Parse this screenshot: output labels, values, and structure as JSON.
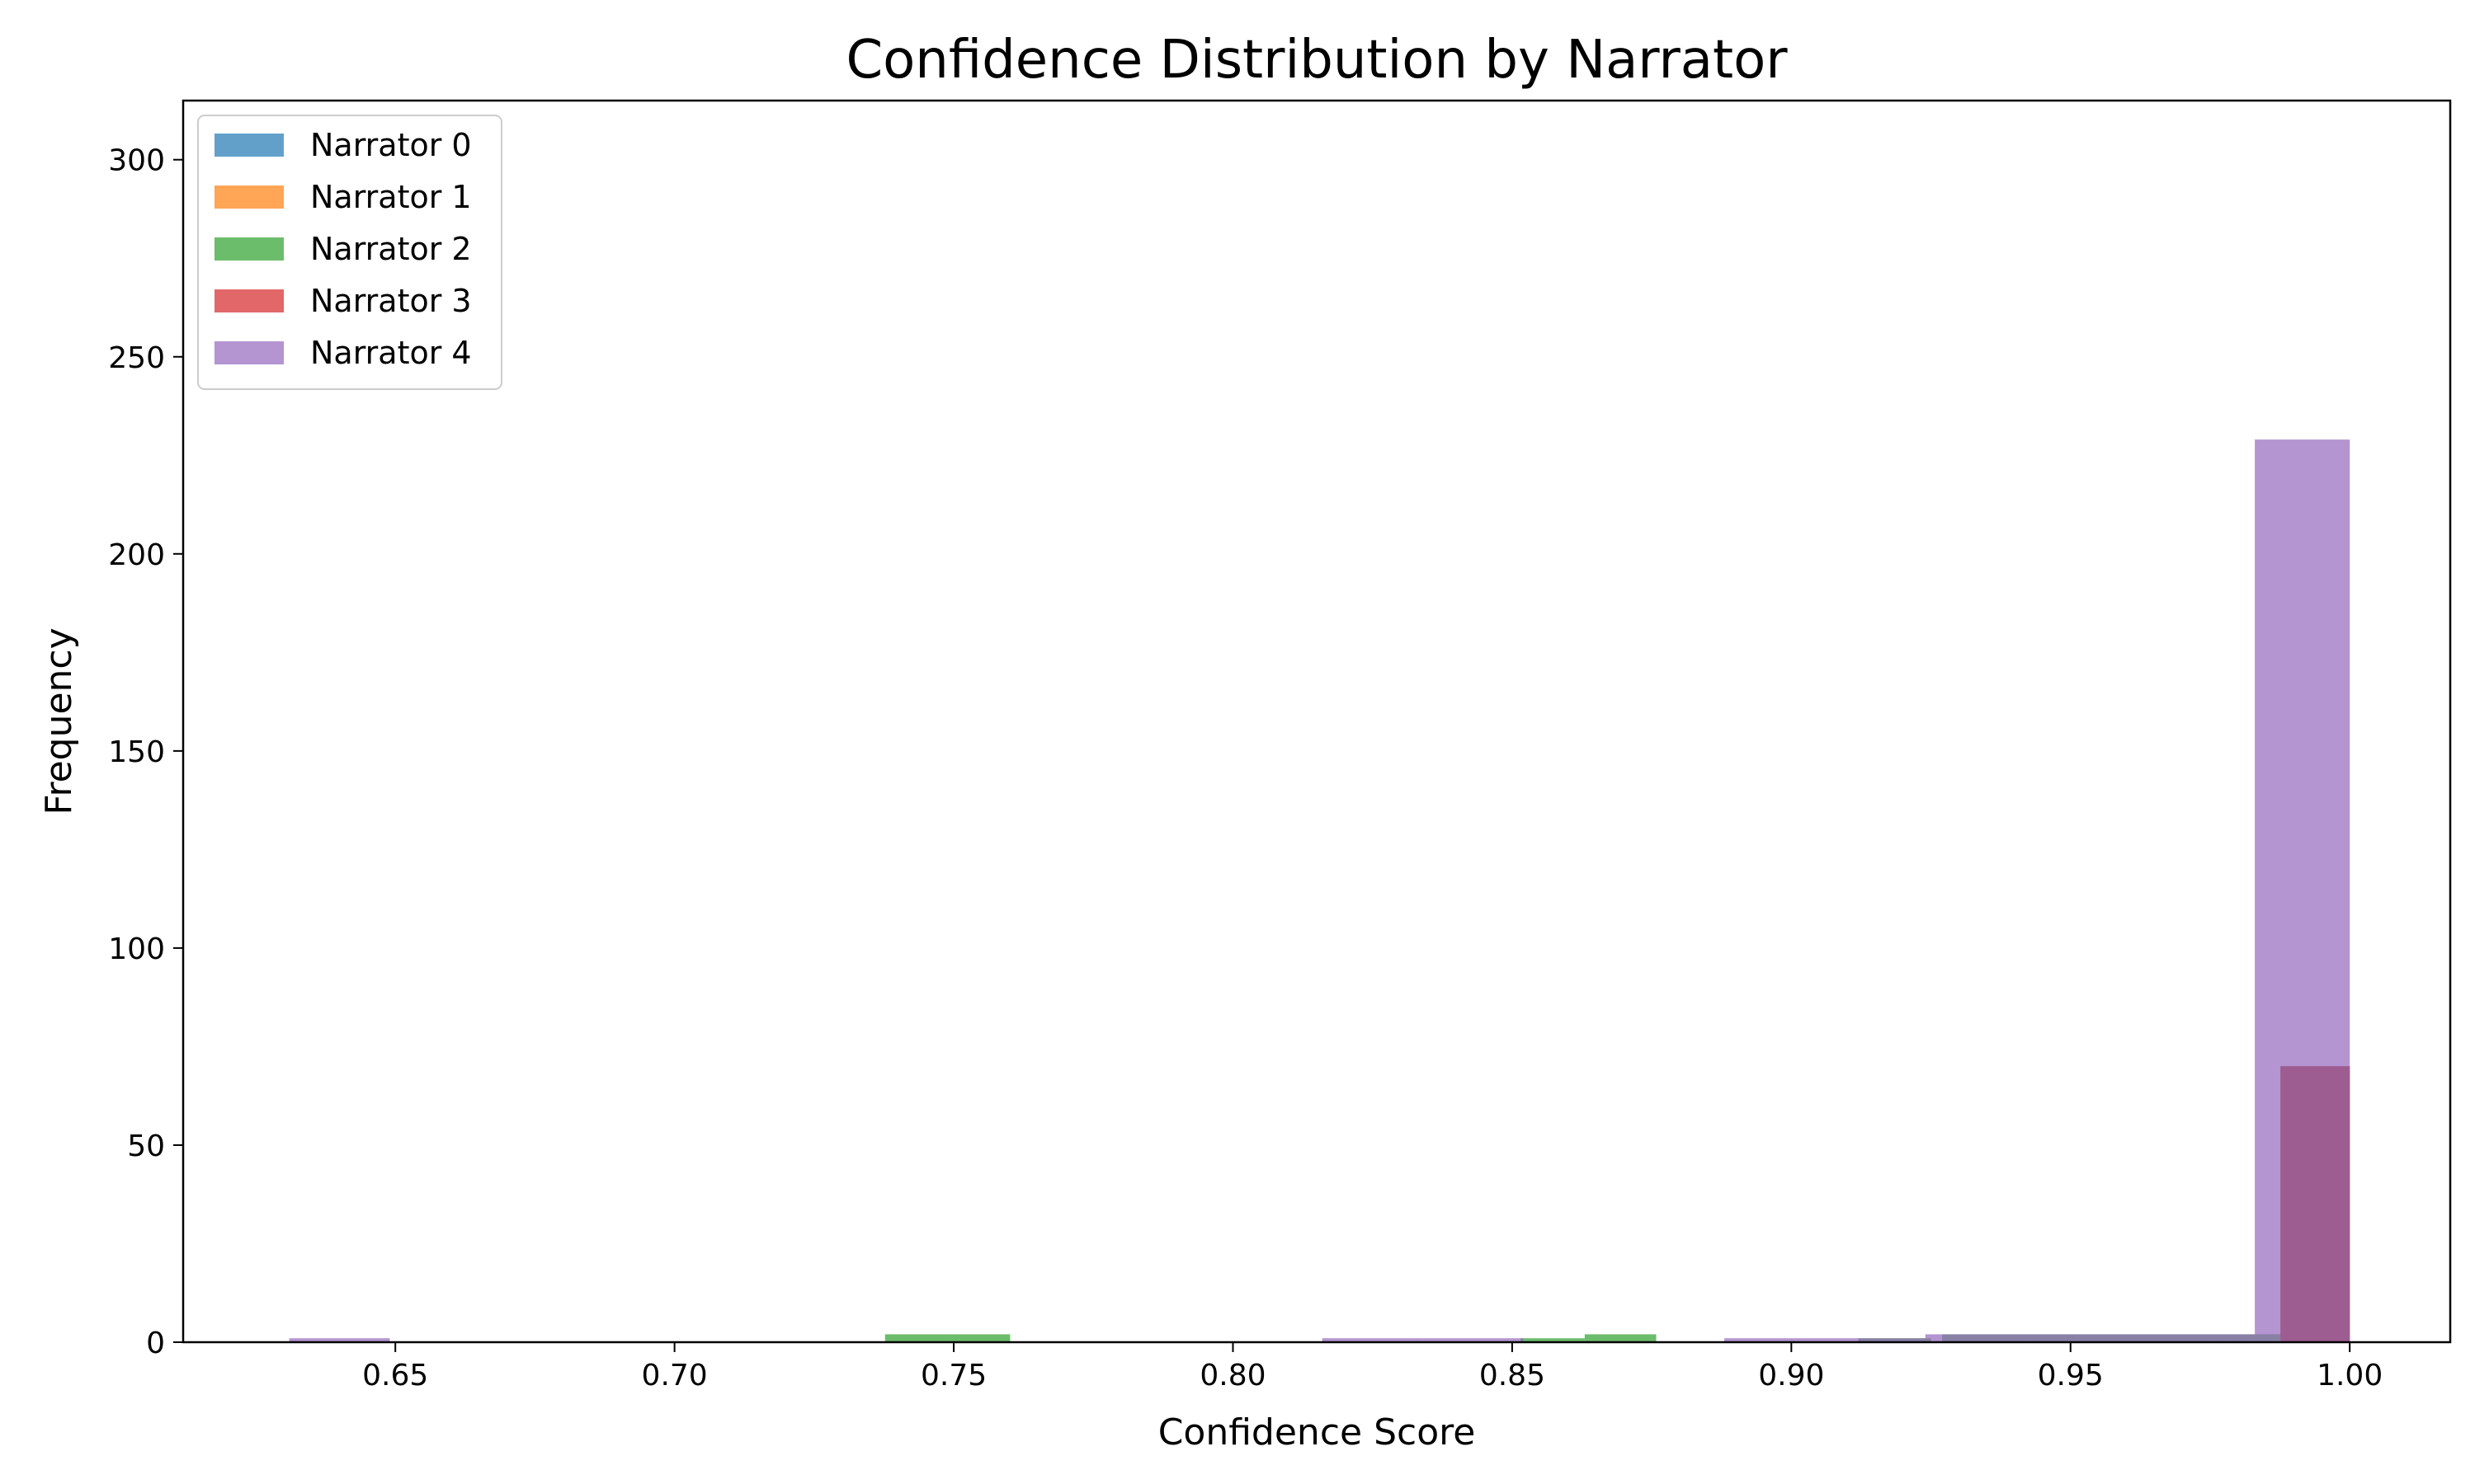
{
  "chart_data": {
    "type": "bar",
    "title": "Confidence Distribution by Narrator",
    "xlabel": "Confidence Score",
    "ylabel": "Frequency",
    "xlim": [
      0.612,
      1.018
    ],
    "ylim": [
      0,
      315
    ],
    "xticks": [
      0.65,
      0.7,
      0.75,
      0.8,
      0.85,
      0.9,
      0.95,
      1.0
    ],
    "xtick_labels": [
      "0.65",
      "0.70",
      "0.75",
      "0.80",
      "0.85",
      "0.90",
      "0.95",
      "1.00"
    ],
    "yticks": [
      0,
      50,
      100,
      150,
      200,
      250,
      300
    ],
    "ytick_labels": [
      "0",
      "50",
      "100",
      "150",
      "200",
      "250",
      "300"
    ],
    "grid": false,
    "legend_position": "top-left",
    "series": [
      {
        "name": "Narrator 0",
        "color": "#1f77b4",
        "bins": [
          {
            "x0": 0.9876,
            "x1": 1.0,
            "count": 70
          }
        ]
      },
      {
        "name": "Narrator 1",
        "color": "#ff7f0e",
        "bins": [
          {
            "x0": 0.9876,
            "x1": 1.0,
            "count": 70
          }
        ]
      },
      {
        "name": "Narrator 2",
        "color": "#2ca02c",
        "bins": [
          {
            "x0": 0.7377,
            "x1": 0.7601,
            "count": 2
          },
          {
            "x0": 0.8515,
            "x1": 0.863,
            "count": 1
          },
          {
            "x0": 0.863,
            "x1": 0.8758,
            "count": 2
          },
          {
            "x0": 0.912,
            "x1": 0.925,
            "count": 1
          },
          {
            "x0": 0.927,
            "x1": 0.951,
            "count": 2
          },
          {
            "x0": 0.951,
            "x1": 0.975,
            "count": 2
          },
          {
            "x0": 0.975,
            "x1": 0.9876,
            "count": 2
          },
          {
            "x0": 0.9876,
            "x1": 1.0,
            "count": 70
          }
        ]
      },
      {
        "name": "Narrator 3",
        "color": "#d62728",
        "bins": [
          {
            "x0": 0.9876,
            "x1": 1.0,
            "count": 70
          }
        ]
      },
      {
        "name": "Narrator 4",
        "color": "#9467bd",
        "bins": [
          {
            "x0": 0.631,
            "x1": 0.649,
            "count": 1
          },
          {
            "x0": 0.816,
            "x1": 0.834,
            "count": 1
          },
          {
            "x0": 0.834,
            "x1": 0.852,
            "count": 1
          },
          {
            "x0": 0.888,
            "x1": 0.906,
            "count": 1
          },
          {
            "x0": 0.906,
            "x1": 0.924,
            "count": 1
          },
          {
            "x0": 0.924,
            "x1": 0.942,
            "count": 2
          },
          {
            "x0": 0.942,
            "x1": 0.96,
            "count": 2
          },
          {
            "x0": 0.96,
            "x1": 0.978,
            "count": 2
          },
          {
            "x0": 0.978,
            "x1": 0.983,
            "count": 2
          },
          {
            "x0": 0.983,
            "x1": 1.0,
            "count": 229
          }
        ]
      }
    ]
  }
}
